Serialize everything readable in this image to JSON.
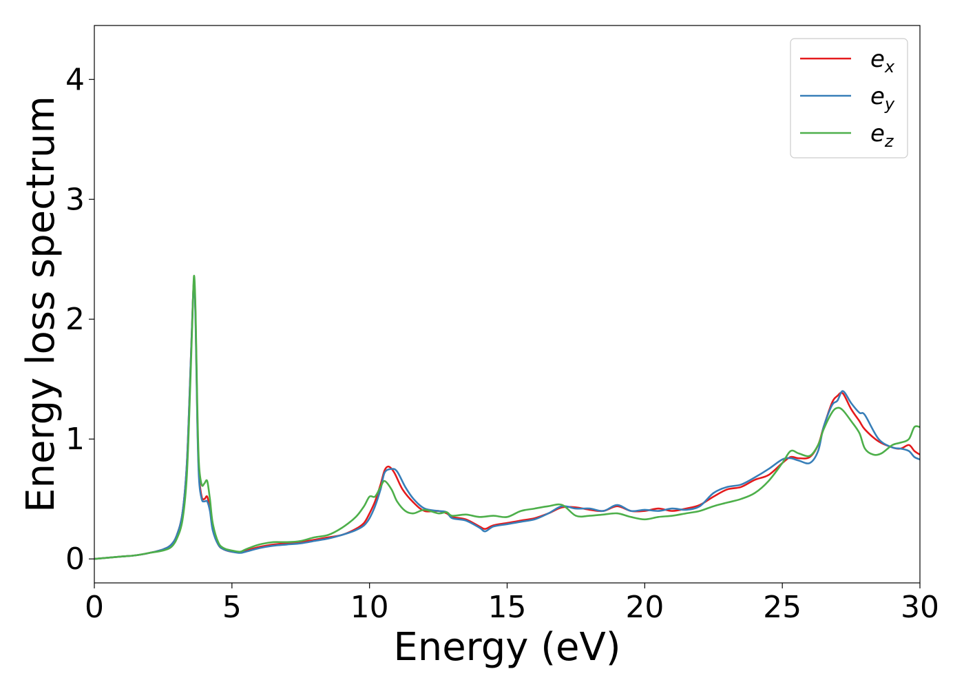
{
  "chart_data": {
    "type": "line",
    "xlabel": "Energy (eV)",
    "ylabel": "Energy loss spectrum",
    "xlim": [
      0,
      30
    ],
    "ylim": [
      -0.2,
      4.45
    ],
    "xticks": [
      "0",
      "5",
      "10",
      "15",
      "20",
      "25",
      "30"
    ],
    "yticks": [
      "0",
      "1",
      "2",
      "3",
      "4"
    ],
    "grid": false,
    "legend_position": "top-right",
    "series": [
      {
        "name": "e",
        "subscript": "x",
        "color": "#e41a1c",
        "x": [
          0,
          1,
          1.5,
          2,
          2.5,
          2.8,
          3.0,
          3.2,
          3.35,
          3.45,
          3.55,
          3.62,
          3.68,
          3.74,
          3.8,
          3.9,
          4.0,
          4.1,
          4.2,
          4.3,
          4.5,
          4.7,
          5.0,
          5.3,
          5.5,
          6.0,
          6.5,
          7.0,
          7.5,
          8.0,
          8.5,
          9.0,
          9.5,
          9.8,
          10.0,
          10.2,
          10.4,
          10.55,
          10.7,
          10.9,
          11.2,
          11.6,
          12.0,
          12.5,
          12.8,
          13.0,
          13.5,
          14.0,
          14.2,
          14.5,
          15.0,
          15.5,
          16.0,
          16.5,
          17.0,
          17.5,
          18.0,
          18.5,
          19.0,
          19.5,
          20.0,
          20.5,
          21.0,
          21.5,
          22.0,
          22.5,
          23.0,
          23.5,
          24.0,
          24.5,
          25.0,
          25.3,
          25.6,
          26.0,
          26.3,
          26.5,
          26.8,
          27.0,
          27.2,
          27.5,
          27.8,
          28.0,
          28.5,
          29.0,
          29.3,
          29.6,
          29.8,
          30.0
        ],
        "values": [
          0.0,
          0.02,
          0.03,
          0.05,
          0.08,
          0.12,
          0.2,
          0.38,
          0.75,
          1.3,
          1.95,
          2.32,
          2.0,
          1.2,
          0.72,
          0.52,
          0.5,
          0.52,
          0.42,
          0.25,
          0.12,
          0.08,
          0.06,
          0.06,
          0.07,
          0.1,
          0.12,
          0.13,
          0.14,
          0.16,
          0.18,
          0.2,
          0.25,
          0.3,
          0.38,
          0.48,
          0.62,
          0.74,
          0.77,
          0.72,
          0.58,
          0.47,
          0.4,
          0.4,
          0.38,
          0.35,
          0.33,
          0.27,
          0.25,
          0.28,
          0.3,
          0.32,
          0.34,
          0.38,
          0.43,
          0.43,
          0.41,
          0.4,
          0.44,
          0.4,
          0.4,
          0.42,
          0.4,
          0.42,
          0.45,
          0.52,
          0.58,
          0.6,
          0.66,
          0.7,
          0.8,
          0.85,
          0.84,
          0.85,
          0.95,
          1.1,
          1.3,
          1.36,
          1.38,
          1.25,
          1.15,
          1.08,
          0.98,
          0.93,
          0.92,
          0.95,
          0.9,
          0.87
        ]
      },
      {
        "name": "e",
        "subscript": "y",
        "color": "#377eb8",
        "x": [
          0,
          1,
          1.5,
          2,
          2.5,
          2.8,
          3.0,
          3.2,
          3.35,
          3.45,
          3.55,
          3.62,
          3.68,
          3.74,
          3.8,
          3.9,
          4.0,
          4.1,
          4.2,
          4.3,
          4.5,
          4.7,
          5.0,
          5.3,
          5.5,
          6.0,
          6.5,
          7.0,
          7.5,
          8.0,
          8.5,
          9.0,
          9.5,
          9.8,
          10.0,
          10.2,
          10.4,
          10.55,
          10.8,
          11.0,
          11.3,
          11.6,
          12.0,
          12.5,
          12.8,
          13.0,
          13.5,
          14.0,
          14.2,
          14.5,
          15.0,
          15.5,
          16.0,
          16.5,
          17.0,
          17.5,
          18.0,
          18.5,
          19.0,
          19.5,
          20.0,
          20.5,
          21.0,
          21.5,
          22.0,
          22.5,
          23.0,
          23.5,
          24.0,
          24.5,
          25.0,
          25.3,
          25.6,
          26.0,
          26.3,
          26.5,
          26.8,
          27.0,
          27.2,
          27.5,
          27.8,
          28.0,
          28.5,
          29.0,
          29.3,
          29.6,
          29.8,
          30.0
        ],
        "values": [
          0.0,
          0.02,
          0.03,
          0.05,
          0.08,
          0.12,
          0.2,
          0.38,
          0.75,
          1.3,
          1.95,
          2.3,
          1.95,
          1.15,
          0.68,
          0.5,
          0.48,
          0.48,
          0.4,
          0.24,
          0.12,
          0.08,
          0.06,
          0.05,
          0.06,
          0.09,
          0.11,
          0.12,
          0.13,
          0.15,
          0.17,
          0.2,
          0.24,
          0.28,
          0.34,
          0.44,
          0.58,
          0.72,
          0.75,
          0.73,
          0.6,
          0.5,
          0.42,
          0.4,
          0.39,
          0.34,
          0.32,
          0.26,
          0.23,
          0.27,
          0.29,
          0.31,
          0.33,
          0.38,
          0.44,
          0.42,
          0.42,
          0.4,
          0.45,
          0.4,
          0.41,
          0.4,
          0.42,
          0.41,
          0.44,
          0.55,
          0.6,
          0.62,
          0.68,
          0.75,
          0.83,
          0.84,
          0.82,
          0.8,
          0.9,
          1.1,
          1.28,
          1.32,
          1.4,
          1.3,
          1.22,
          1.2,
          1.0,
          0.93,
          0.92,
          0.9,
          0.85,
          0.83
        ]
      },
      {
        "name": "e",
        "subscript": "z",
        "color": "#4daf4a",
        "x": [
          0,
          1,
          1.5,
          2,
          2.5,
          2.8,
          3.0,
          3.2,
          3.35,
          3.45,
          3.55,
          3.62,
          3.68,
          3.74,
          3.8,
          3.9,
          4.0,
          4.1,
          4.2,
          4.3,
          4.5,
          4.7,
          5.0,
          5.3,
          5.5,
          6.0,
          6.5,
          7.0,
          7.5,
          8.0,
          8.5,
          9.0,
          9.5,
          9.8,
          10.0,
          10.2,
          10.4,
          10.55,
          10.8,
          11.0,
          11.3,
          11.6,
          12.0,
          12.5,
          12.8,
          13.0,
          13.5,
          14.0,
          14.5,
          15.0,
          15.5,
          16.0,
          16.5,
          17.0,
          17.5,
          18.0,
          18.5,
          19.0,
          19.5,
          20.0,
          20.5,
          21.0,
          21.5,
          22.0,
          22.5,
          23.0,
          23.5,
          24.0,
          24.5,
          25.0,
          25.3,
          25.6,
          26.0,
          26.3,
          26.5,
          26.8,
          27.0,
          27.2,
          27.5,
          27.8,
          28.0,
          28.3,
          28.6,
          29.0,
          29.3,
          29.6,
          29.8,
          30.0
        ],
        "values": [
          0.0,
          0.02,
          0.03,
          0.05,
          0.07,
          0.1,
          0.17,
          0.32,
          0.65,
          1.2,
          1.9,
          2.36,
          2.05,
          1.3,
          0.8,
          0.62,
          0.63,
          0.65,
          0.5,
          0.3,
          0.14,
          0.09,
          0.07,
          0.06,
          0.08,
          0.12,
          0.14,
          0.14,
          0.15,
          0.18,
          0.2,
          0.26,
          0.35,
          0.44,
          0.52,
          0.52,
          0.6,
          0.65,
          0.58,
          0.48,
          0.4,
          0.38,
          0.41,
          0.38,
          0.39,
          0.36,
          0.37,
          0.35,
          0.36,
          0.35,
          0.4,
          0.42,
          0.44,
          0.45,
          0.36,
          0.36,
          0.37,
          0.38,
          0.35,
          0.33,
          0.35,
          0.36,
          0.38,
          0.4,
          0.44,
          0.47,
          0.5,
          0.55,
          0.65,
          0.8,
          0.9,
          0.88,
          0.86,
          0.95,
          1.08,
          1.22,
          1.26,
          1.24,
          1.15,
          1.05,
          0.92,
          0.87,
          0.88,
          0.95,
          0.97,
          1.0,
          1.1,
          1.1
        ]
      }
    ]
  }
}
